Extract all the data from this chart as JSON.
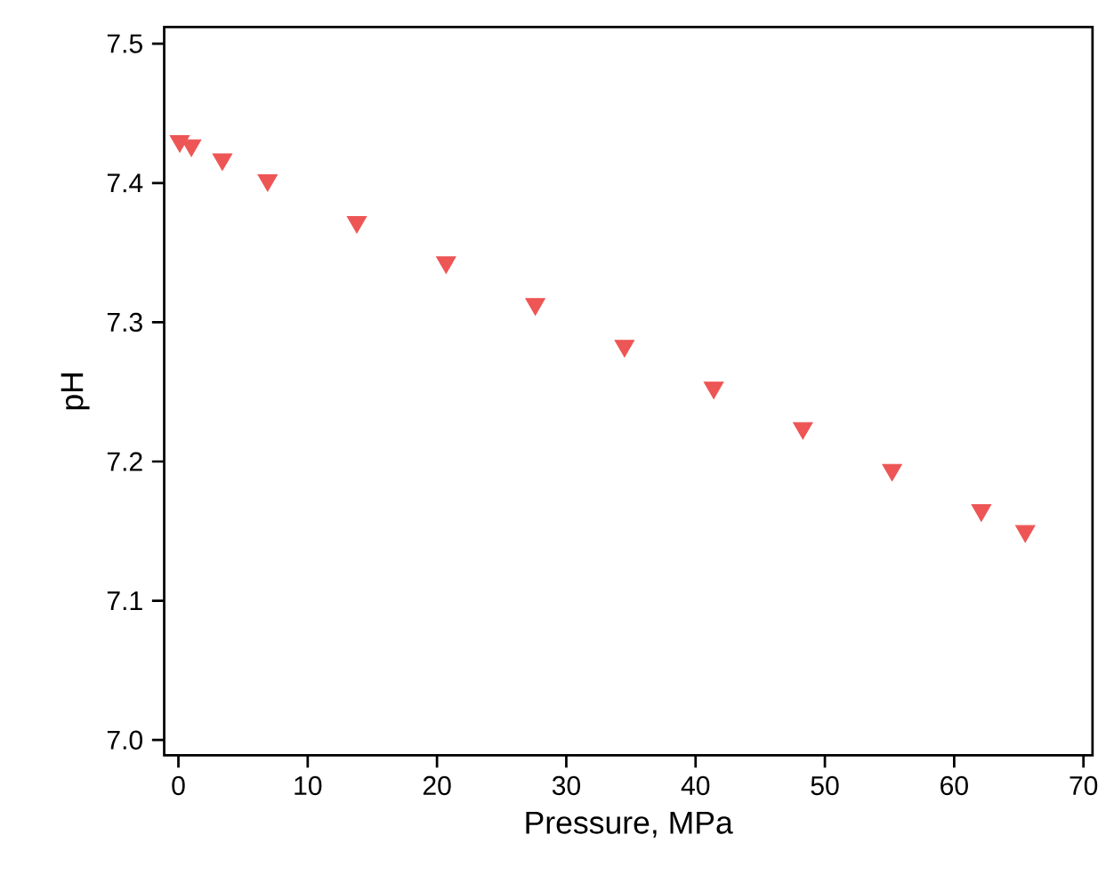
{
  "chart_data": {
    "type": "scatter",
    "xlabel": "Pressure, MPa",
    "ylabel": "pH",
    "x": [
      0.1,
      1.0,
      3.4,
      6.9,
      13.8,
      20.7,
      27.6,
      34.5,
      41.4,
      48.3,
      55.2,
      62.1,
      65.5
    ],
    "values": [
      7.43,
      7.427,
      7.417,
      7.402,
      7.372,
      7.343,
      7.313,
      7.283,
      7.253,
      7.224,
      7.194,
      7.165,
      7.15
    ],
    "color": "#ee5555",
    "marker": "triangle",
    "grid": false,
    "xlim": [
      -1.1,
      70.7
    ],
    "ylim": [
      6.989,
      7.512
    ],
    "xticks": [
      0,
      10,
      20,
      30,
      40,
      50,
      60,
      70
    ],
    "yticks": [
      {
        "value": 7.0,
        "label": "7.0"
      },
      {
        "value": 7.1,
        "label": "7.1"
      },
      {
        "value": 7.2,
        "label": "7.2"
      },
      {
        "value": 7.3,
        "label": "7.3"
      },
      {
        "value": 7.4,
        "label": "7.4"
      },
      {
        "value": 7.5,
        "label": "7.5"
      }
    ]
  }
}
